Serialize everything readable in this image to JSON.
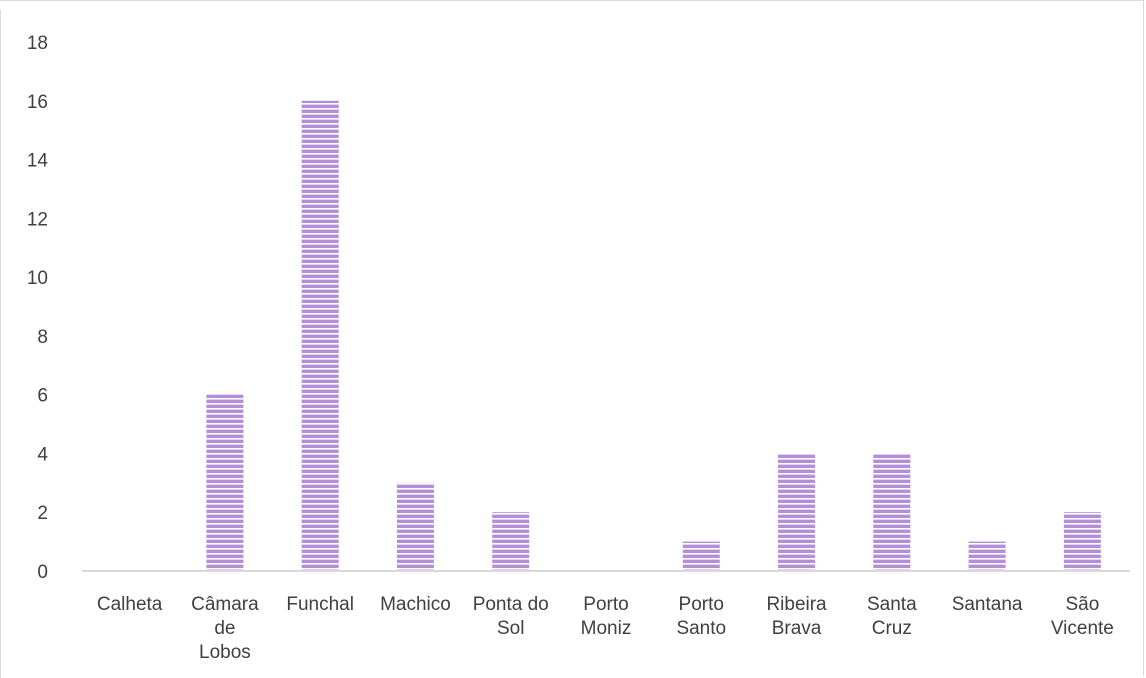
{
  "chart_data": {
    "type": "bar",
    "categories": [
      "Calheta",
      "Câmara de Lobos",
      "Funchal",
      "Machico",
      "Ponta do Sol",
      "Porto Moniz",
      "Porto Santo",
      "Ribeira Brava",
      "Santa Cruz",
      "Santana",
      "São Vicente"
    ],
    "category_lines": [
      [
        "Calheta"
      ],
      [
        "Câmara",
        "de",
        "Lobos"
      ],
      [
        "Funchal"
      ],
      [
        "Machico"
      ],
      [
        "Ponta do",
        "Sol"
      ],
      [
        "Porto",
        "Moniz"
      ],
      [
        "Porto",
        "Santo"
      ],
      [
        "Ribeira",
        "Brava"
      ],
      [
        "Santa",
        "Cruz"
      ],
      [
        "Santana"
      ],
      [
        "São",
        "Vicente"
      ]
    ],
    "values": [
      0,
      6,
      16,
      3,
      2,
      0,
      1,
      4,
      4,
      1,
      2
    ],
    "ylim": [
      0,
      18
    ],
    "yticks": [
      "0",
      "2",
      "4",
      "6",
      "8",
      "10",
      "12",
      "14",
      "16",
      "18"
    ],
    "grid": false,
    "bar_color": "#b48fd8",
    "bar_stripe_color": "#ffffff",
    "axis_color": "#d9d9d9",
    "text_color": "#404040"
  }
}
